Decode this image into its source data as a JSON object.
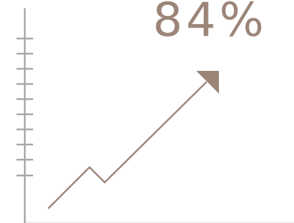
{
  "headline": {
    "value": "84%"
  },
  "colors": {
    "accent": "#9c8578",
    "axis": "#a6a6a6",
    "baseline": "#eeeeee",
    "background": "#ffffff"
  },
  "icons": {
    "trend": "arrow-trending-up-icon",
    "scale": "ruler-scale-icon"
  }
}
